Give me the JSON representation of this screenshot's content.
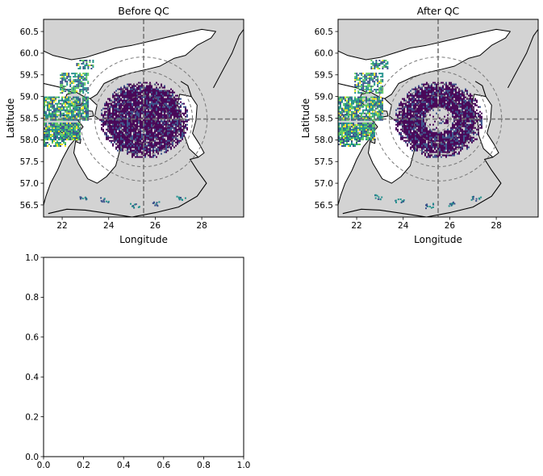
{
  "chart_data": [
    {
      "type": "heatmap",
      "title": "Before QC",
      "xlabel": "Longitude",
      "ylabel": "Latitude",
      "xlim": [
        21.2,
        29.8
      ],
      "ylim": [
        56.22,
        60.78
      ],
      "xticks": [
        "22",
        "24",
        "26",
        "28"
      ],
      "xtick_values": [
        22,
        24,
        26,
        28
      ],
      "yticks": [
        "56.5",
        "57.0",
        "57.5",
        "58.0",
        "58.5",
        "59.0",
        "59.5",
        "60.0",
        "60.5"
      ],
      "ytick_values": [
        56.5,
        57.0,
        57.5,
        58.0,
        58.5,
        59.0,
        59.5,
        60.0,
        60.5
      ],
      "radar_center": [
        25.5,
        58.48
      ],
      "range_rings_deg": [
        0.5,
        1.0,
        1.5,
        2.0,
        2.6
      ],
      "land_color": "#d3d3d3",
      "sea_color": "#ffffff",
      "colormap": [
        "#440154",
        "#3b528b",
        "#21918c",
        "#5ec962",
        "#fde725"
      ],
      "clutter_removed": false
    },
    {
      "type": "heatmap",
      "title": "After QC",
      "xlabel": "Longitude",
      "ylabel": "Latitude",
      "xlim": [
        21.2,
        29.8
      ],
      "ylim": [
        56.22,
        60.78
      ],
      "xticks": [
        "22",
        "24",
        "26",
        "28"
      ],
      "xtick_values": [
        22,
        24,
        26,
        28
      ],
      "yticks": [
        "56.5",
        "57.0",
        "57.5",
        "58.0",
        "58.5",
        "59.0",
        "59.5",
        "60.0",
        "60.5"
      ],
      "ytick_values": [
        56.5,
        57.0,
        57.5,
        58.0,
        58.5,
        59.0,
        59.5,
        60.0,
        60.5
      ],
      "radar_center": [
        25.5,
        58.48
      ],
      "range_rings_deg": [
        0.5,
        1.0,
        1.5,
        2.0,
        2.6
      ],
      "land_color": "#d3d3d3",
      "sea_color": "#ffffff",
      "colormap": [
        "#440154",
        "#3b528b",
        "#21918c",
        "#5ec962",
        "#fde725"
      ],
      "clutter_removed": true
    },
    {
      "type": "line",
      "title": "",
      "xlabel": "",
      "ylabel": "",
      "xlim": [
        0,
        1
      ],
      "ylim": [
        0,
        1
      ],
      "xticks": [
        "0.0",
        "0.2",
        "0.4",
        "0.6",
        "0.8",
        "1.0"
      ],
      "xtick_values": [
        0,
        0.2,
        0.4,
        0.6,
        0.8,
        1.0
      ],
      "yticks": [
        "0.0",
        "0.2",
        "0.4",
        "0.6",
        "0.8",
        "1.0"
      ],
      "ytick_values": [
        0,
        0.2,
        0.4,
        0.6,
        0.8,
        1.0
      ],
      "series": []
    }
  ]
}
